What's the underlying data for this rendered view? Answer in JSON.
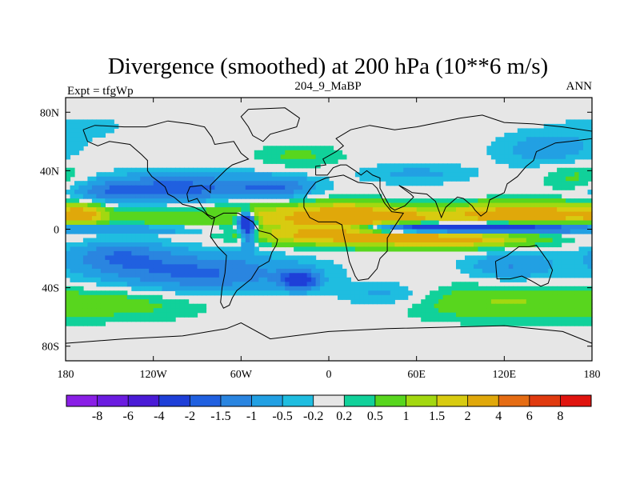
{
  "chart_data": {
    "type": "heatmap",
    "title": "Divergence (smoothed) at 200 hPa (10**6 m/s)",
    "left_label": "Expt = tfgWp",
    "center_label": "204_9_MaBP",
    "right_label": "ANN",
    "xlim": [
      -180,
      180
    ],
    "ylim": [
      -90,
      90
    ],
    "x_ticks": [
      {
        "value": -180,
        "label": "180"
      },
      {
        "value": -120,
        "label": "120W"
      },
      {
        "value": -60,
        "label": "60W"
      },
      {
        "value": 0,
        "label": "0"
      },
      {
        "value": 60,
        "label": "60E"
      },
      {
        "value": 120,
        "label": "120E"
      },
      {
        "value": 180,
        "label": "180"
      }
    ],
    "y_ticks": [
      {
        "value": 80,
        "label": "80N"
      },
      {
        "value": 40,
        "label": "40N"
      },
      {
        "value": 0,
        "label": "0"
      },
      {
        "value": -40,
        "label": "40S"
      },
      {
        "value": -80,
        "label": "80S"
      }
    ],
    "colorbar": {
      "levels": [
        -8,
        -6,
        -4,
        -2,
        -1.5,
        -1,
        -0.5,
        -0.2,
        0.2,
        0.5,
        1,
        1.5,
        2,
        4,
        6,
        8
      ],
      "level_labels": [
        "-8",
        "-6",
        "-4",
        "-2",
        "-1.5",
        "-1",
        "-0.5",
        "-0.2",
        "0.2",
        "0.5",
        "1",
        "1.5",
        "2",
        "4",
        "6",
        "8"
      ],
      "colors": [
        "#8a1fe6",
        "#6b1ce0",
        "#4a1bd6",
        "#1e3fd8",
        "#2060e0",
        "#2a85e0",
        "#22a0e3",
        "#1fbde0",
        "#e6e6e6",
        "#11d19a",
        "#58d61e",
        "#a3d810",
        "#d8cb10",
        "#e0a80a",
        "#e56c13",
        "#e03a0f",
        "#e0140f"
      ]
    },
    "field": {
      "description_units": "10**6 m/s",
      "baseline": 0,
      "components": [
        {
          "lon": 40,
          "lat": 8,
          "lon_w": 70,
          "lat_w": 9,
          "value": 2.2
        },
        {
          "lon": 10,
          "lat": 8,
          "lon_w": 22,
          "lat_w": 10,
          "value": 1.4
        },
        {
          "lon": -45,
          "lat": 12,
          "lon_w": 40,
          "lat_w": 10,
          "value": 1.2
        },
        {
          "lon": 140,
          "lat": 10,
          "lon_w": 45,
          "lat_w": 8,
          "value": 2.6
        },
        {
          "lon": -168,
          "lat": 10,
          "lon_w": 18,
          "lat_w": 8,
          "value": 1.9
        },
        {
          "lon": -115,
          "lat": 8,
          "lon_w": 30,
          "lat_w": 7,
          "value": 0.9
        },
        {
          "lon": 80,
          "lat": -7,
          "lon_w": 60,
          "lat_w": 6,
          "value": 2.4
        },
        {
          "lon": -10,
          "lat": -3,
          "lon_w": 50,
          "lat_w": 8,
          "value": 2.0
        },
        {
          "lon": 90,
          "lat": 1,
          "lon_w": 80,
          "lat_w": 3.5,
          "value": -4.5
        },
        {
          "lon": -130,
          "lat": 0,
          "lon_w": 70,
          "lat_w": 3,
          "value": -0.9
        },
        {
          "lon": -57,
          "lat": 6,
          "lon_w": 6,
          "lat_w": 6,
          "value": -3.5
        },
        {
          "lon": -55,
          "lat": -2,
          "lon_w": 5,
          "lat_w": 10,
          "value": -2.2
        },
        {
          "lon": -100,
          "lat": 28,
          "lon_w": 60,
          "lat_w": 10,
          "value": -1.7
        },
        {
          "lon": -35,
          "lat": 28,
          "lon_w": 25,
          "lat_w": 8,
          "value": -1.2
        },
        {
          "lon": -150,
          "lat": 25,
          "lon_w": 30,
          "lat_w": 8,
          "value": -0.8
        },
        {
          "lon": -90,
          "lat": -30,
          "lon_w": 70,
          "lat_w": 14,
          "value": -1.6
        },
        {
          "lon": -145,
          "lat": -18,
          "lon_w": 35,
          "lat_w": 10,
          "value": -1.2
        },
        {
          "lon": -20,
          "lat": -35,
          "lon_w": 12,
          "lat_w": 6,
          "value": -2.6
        },
        {
          "lon": 125,
          "lat": -25,
          "lon_w": 30,
          "lat_w": 10,
          "value": -1.0
        },
        {
          "lon": 40,
          "lat": -45,
          "lon_w": 30,
          "lat_w": 8,
          "value": -0.7
        },
        {
          "lon": 150,
          "lat": 55,
          "lon_w": 35,
          "lat_w": 12,
          "value": -0.8
        },
        {
          "lon": 60,
          "lat": 38,
          "lon_w": 40,
          "lat_w": 7,
          "value": -0.6
        },
        {
          "lon": -150,
          "lat": -50,
          "lon_w": 70,
          "lat_w": 12,
          "value": 0.8
        },
        {
          "lon": 110,
          "lat": -50,
          "lon_w": 60,
          "lat_w": 12,
          "value": 0.9
        },
        {
          "lon": -20,
          "lat": 50,
          "lon_w": 30,
          "lat_w": 8,
          "value": 0.6
        },
        {
          "lon": 170,
          "lat": 35,
          "lon_w": 25,
          "lat_w": 10,
          "value": 0.7
        },
        {
          "lon": -170,
          "lat": 70,
          "lon_w": 30,
          "lat_w": 8,
          "value": -0.4
        }
      ]
    },
    "coastline_note": "Simplified continental outlines (Americas, Africa, Eurasia) in data units"
  }
}
